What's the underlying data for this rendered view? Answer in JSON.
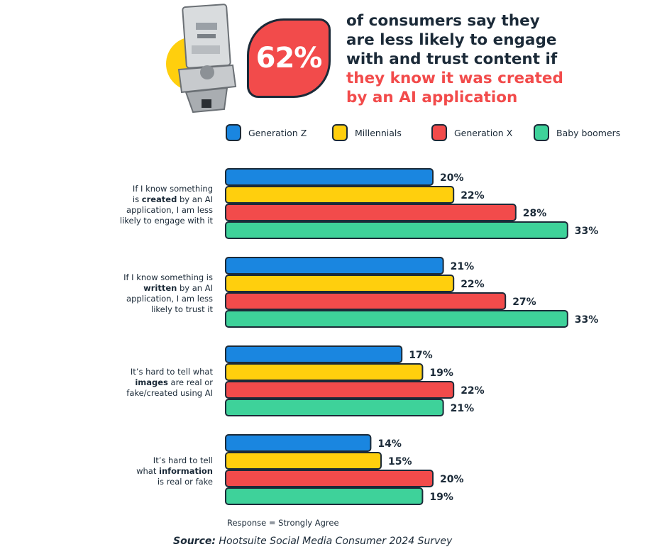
{
  "headline": {
    "stat": "62%",
    "line1": "of consumers say they",
    "line2": "are less likely to engage",
    "line3": "with and trust content if",
    "highlight1": "they know it was created",
    "highlight2": "by an AI application"
  },
  "chart_data": {
    "type": "bar",
    "orientation": "horizontal",
    "categories": [
      {
        "pre": "If I know something is ",
        "bold": "created",
        "post": " by an AI application, I am less likely to engage with it",
        "lines": [
          [
            "If I know something",
            "",
            ""
          ],
          [
            "is ",
            "created",
            " by an AI"
          ],
          [
            "application, I am less",
            "",
            ""
          ],
          [
            "likely to engage with it",
            "",
            ""
          ]
        ]
      },
      {
        "pre": "If I know something is ",
        "bold": "written",
        "post": " by an AI application, I am less likely to trust it",
        "lines": [
          [
            "If I know something is",
            "",
            ""
          ],
          [
            "",
            "written",
            " by an AI"
          ],
          [
            "application, I am less",
            "",
            ""
          ],
          [
            "likely to trust it",
            "",
            ""
          ]
        ]
      },
      {
        "pre": "It’s hard to tell what ",
        "bold": "images",
        "post": " are real or fake/created using AI",
        "lines": [
          [
            "It’s hard to tell what",
            "",
            ""
          ],
          [
            "",
            "images",
            " are real or"
          ],
          [
            "fake/created using AI",
            "",
            ""
          ]
        ]
      },
      {
        "pre": "It’s hard to tell what ",
        "bold": "information",
        "post": " is real or fake",
        "lines": [
          [
            "It’s hard to tell",
            "",
            ""
          ],
          [
            "what ",
            "information",
            ""
          ],
          [
            "is real or fake",
            "",
            ""
          ]
        ]
      }
    ],
    "series": [
      {
        "name": "Generation Z",
        "color": "#1a86e0",
        "values": [
          20,
          21,
          17,
          14
        ]
      },
      {
        "name": "Millennials",
        "color": "#ffcf0d",
        "values": [
          22,
          22,
          19,
          15
        ]
      },
      {
        "name": "Generation X",
        "color": "#f24b4b",
        "values": [
          28,
          27,
          22,
          20
        ]
      },
      {
        "name": "Baby boomers",
        "color": "#3ed29a",
        "values": [
          33,
          33,
          21,
          19
        ]
      }
    ],
    "value_suffix": "%",
    "xlim": [
      0,
      40
    ],
    "legend": "top",
    "grid": false
  },
  "note": "Response = Strongly Agree",
  "source": {
    "label": "Source:",
    "text": "Hootsuite Social Media Consumer 2024 Survey"
  }
}
